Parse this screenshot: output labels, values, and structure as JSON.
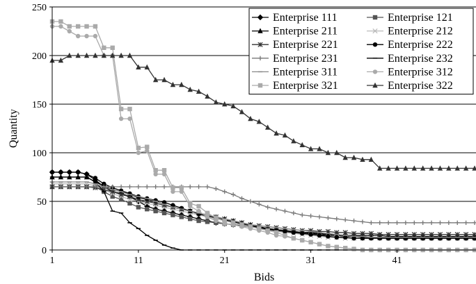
{
  "chart_data": {
    "type": "line",
    "title": "",
    "xlabel": "Bids",
    "ylabel": "Quantity",
    "xlim": [
      1,
      50
    ],
    "ylim": [
      0,
      250
    ],
    "x_ticks": [
      1,
      11,
      21,
      31,
      41
    ],
    "y_ticks": [
      0,
      50,
      100,
      150,
      200,
      250
    ],
    "grid": "horizontal",
    "legend_position": "top-right",
    "x": [
      1,
      2,
      3,
      4,
      5,
      6,
      7,
      8,
      9,
      10,
      11,
      12,
      13,
      14,
      15,
      16,
      17,
      18,
      19,
      20,
      21,
      22,
      23,
      24,
      25,
      26,
      27,
      28,
      29,
      30,
      31,
      32,
      33,
      34,
      35,
      36,
      37,
      38,
      39,
      40,
      41,
      42,
      43,
      44,
      45,
      46,
      47,
      48,
      49,
      50
    ],
    "series": [
      {
        "name": "Enterprise 111",
        "color": "#000000",
        "marker": "diamond",
        "values": [
          80,
          80,
          80,
          80,
          78,
          72,
          65,
          60,
          58,
          55,
          50,
          45,
          42,
          40,
          38,
          36,
          34,
          32,
          30,
          28,
          27,
          26,
          25,
          24,
          23,
          22,
          21,
          20,
          19,
          18,
          18,
          17,
          16,
          16,
          15,
          15,
          15,
          15,
          15,
          14,
          14,
          14,
          14,
          14,
          14,
          14,
          14,
          14,
          14,
          14
        ]
      },
      {
        "name": "Enterprise 121",
        "color": "#555555",
        "marker": "square",
        "values": [
          65,
          65,
          65,
          65,
          65,
          65,
          60,
          55,
          52,
          48,
          44,
          42,
          40,
          38,
          36,
          34,
          32,
          30,
          29,
          28,
          27,
          26,
          25,
          24,
          23,
          22,
          21,
          20,
          19,
          18,
          17,
          16,
          15,
          15,
          14,
          14,
          13,
          13,
          13,
          12,
          12,
          12,
          12,
          12,
          12,
          12,
          12,
          12,
          12,
          12
        ]
      },
      {
        "name": "Enterprise 211",
        "color": "#000000",
        "marker": "triangle",
        "values": [
          75,
          75,
          75,
          75,
          75,
          70,
          66,
          62,
          60,
          57,
          54,
          52,
          50,
          47,
          44,
          42,
          40,
          38,
          36,
          34,
          32,
          30,
          28,
          26,
          24,
          22,
          21,
          20,
          19,
          18,
          17,
          16,
          15,
          15,
          14,
          14,
          14,
          13,
          13,
          13,
          13,
          13,
          13,
          13,
          13,
          13,
          13,
          13,
          13,
          13
        ]
      },
      {
        "name": "Enterprise 212",
        "color": "#bbbbbb",
        "marker": "x",
        "values": [
          68,
          68,
          68,
          68,
          68,
          66,
          62,
          58,
          55,
          52,
          50,
          48,
          46,
          44,
          42,
          40,
          38,
          36,
          34,
          32,
          30,
          28,
          26,
          24,
          22,
          20,
          19,
          18,
          17,
          16,
          15,
          14,
          13,
          13,
          12,
          12,
          12,
          12,
          12,
          12,
          12,
          12,
          12,
          12,
          12,
          12,
          12,
          12,
          12,
          12
        ]
      },
      {
        "name": "Enterprise 221",
        "color": "#333333",
        "marker": "star",
        "values": [
          65,
          65,
          65,
          65,
          65,
          64,
          62,
          60,
          57,
          55,
          52,
          50,
          48,
          46,
          44,
          42,
          40,
          38,
          36,
          34,
          32,
          30,
          28,
          26,
          25,
          24,
          23,
          22,
          21,
          20,
          20,
          19,
          19,
          18,
          18,
          17,
          17,
          17,
          16,
          16,
          16,
          16,
          16,
          16,
          16,
          16,
          16,
          16,
          16,
          16
        ]
      },
      {
        "name": "Enterprise 222",
        "color": "#000000",
        "marker": "circle",
        "values": [
          80,
          80,
          80,
          80,
          78,
          74,
          68,
          64,
          61,
          58,
          55,
          53,
          51,
          49,
          46,
          43,
          40,
          37,
          35,
          33,
          31,
          29,
          27,
          25,
          23,
          21,
          20,
          19,
          18,
          17,
          16,
          15,
          14,
          13,
          13,
          12,
          12,
          12,
          12,
          12,
          12,
          12,
          12,
          12,
          12,
          12,
          12,
          12,
          12,
          12
        ]
      },
      {
        "name": "Enterprise 231",
        "color": "#777777",
        "marker": "plus",
        "values": [
          65,
          65,
          65,
          65,
          65,
          65,
          65,
          65,
          65,
          65,
          65,
          65,
          65,
          65,
          65,
          65,
          65,
          65,
          65,
          63,
          60,
          57,
          53,
          50,
          47,
          44,
          42,
          40,
          38,
          36,
          35,
          34,
          33,
          32,
          31,
          30,
          29,
          28,
          28,
          28,
          28,
          28,
          28,
          28,
          28,
          28,
          28,
          28,
          28,
          28
        ]
      },
      {
        "name": "Enterprise 232",
        "color": "#000000",
        "marker": "dash",
        "values": [
          75,
          75,
          75,
          75,
          75,
          70,
          60,
          40,
          38,
          28,
          22,
          15,
          10,
          5,
          2,
          0,
          0,
          0,
          0,
          0,
          0,
          0,
          0,
          0,
          0,
          0,
          0,
          0,
          0,
          0,
          0,
          0,
          0,
          0,
          0,
          0,
          0,
          0,
          0,
          0,
          0,
          0,
          0,
          0,
          0,
          0,
          0,
          0,
          0,
          0
        ]
      },
      {
        "name": "Enterprise 311",
        "color": "#888888",
        "marker": "dash",
        "values": [
          70,
          70,
          70,
          70,
          70,
          68,
          65,
          62,
          60,
          57,
          55,
          53,
          50,
          47,
          44,
          42,
          40,
          38,
          36,
          34,
          32,
          30,
          28,
          26,
          25,
          24,
          23,
          22,
          21,
          20,
          19,
          18,
          17,
          16,
          15,
          14,
          14,
          13,
          13,
          13,
          13,
          13,
          13,
          13,
          13,
          13,
          13,
          13,
          13,
          13
        ]
      },
      {
        "name": "Enterprise 312",
        "color": "#aaaaaa",
        "marker": "circle",
        "values": [
          230,
          230,
          225,
          220,
          220,
          220,
          200,
          200,
          135,
          135,
          100,
          102,
          78,
          78,
          60,
          60,
          45,
          40,
          34,
          30,
          27,
          26,
          24,
          22,
          20,
          18,
          15,
          14,
          12,
          10,
          8,
          6,
          4,
          3,
          2,
          1,
          0,
          0,
          0,
          0,
          0,
          0,
          0,
          0,
          0,
          0,
          0,
          0,
          0,
          0
        ]
      },
      {
        "name": "Enterprise 321",
        "color": "#aaaaaa",
        "marker": "square",
        "values": [
          235,
          235,
          230,
          230,
          230,
          230,
          208,
          208,
          145,
          145,
          105,
          106,
          82,
          82,
          64,
          64,
          48,
          45,
          38,
          33,
          30,
          28,
          26,
          24,
          22,
          20,
          18,
          15,
          12,
          10,
          8,
          6,
          4,
          3,
          2,
          1,
          0,
          0,
          0,
          0,
          0,
          0,
          0,
          0,
          0,
          0,
          0,
          0,
          0,
          0
        ]
      },
      {
        "name": "Enterprise 322",
        "color": "#333333",
        "marker": "triangle",
        "values": [
          195,
          195,
          200,
          200,
          200,
          200,
          200,
          200,
          200,
          200,
          188,
          188,
          175,
          175,
          170,
          170,
          165,
          163,
          158,
          152,
          150,
          148,
          142,
          135,
          132,
          126,
          120,
          118,
          112,
          108,
          104,
          104,
          100,
          100,
          95,
          95,
          93,
          93,
          84,
          84,
          84,
          84,
          84,
          84,
          84,
          84,
          84,
          84,
          84,
          84
        ]
      }
    ]
  }
}
